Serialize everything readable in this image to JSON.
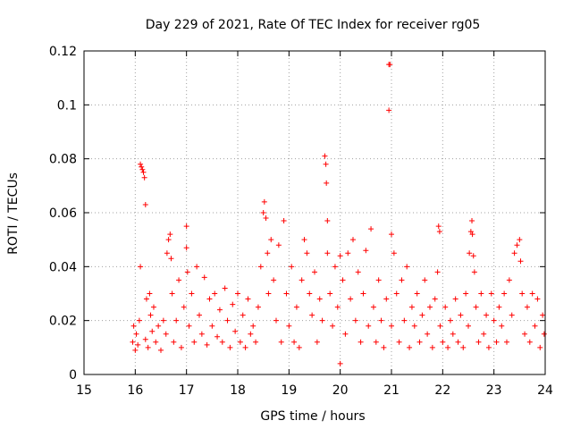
{
  "chart_data": {
    "type": "scatter",
    "title": "Day 229 of 2021, Rate Of TEC Index for receiver rg05",
    "xlabel": "GPS time / hours",
    "ylabel": "ROTI / TECUs",
    "xlim": [
      15,
      24
    ],
    "ylim": [
      0,
      0.12
    ],
    "x_ticks": [
      15,
      16,
      17,
      18,
      19,
      20,
      21,
      22,
      23,
      24
    ],
    "x_tick_labels": [
      "15",
      "16",
      "17",
      "18",
      "19",
      "20",
      "21",
      "22",
      "23",
      "24"
    ],
    "y_ticks": [
      0,
      0.02,
      0.04,
      0.06,
      0.08,
      0.1,
      0.12
    ],
    "y_tick_labels": [
      "0",
      "0.02",
      "0.04",
      "0.06",
      "0.08",
      "0.1",
      "0.12"
    ],
    "grid": true,
    "marker": "+",
    "series": [
      {
        "name": "ROTI",
        "color": "#ff0000",
        "points": [
          [
            15.95,
            0.012
          ],
          [
            15.97,
            0.018
          ],
          [
            16.0,
            0.009
          ],
          [
            16.02,
            0.015
          ],
          [
            16.05,
            0.011
          ],
          [
            16.08,
            0.02
          ],
          [
            16.1,
            0.04
          ],
          [
            16.1,
            0.078
          ],
          [
            16.12,
            0.077
          ],
          [
            16.14,
            0.076
          ],
          [
            16.16,
            0.075
          ],
          [
            16.18,
            0.073
          ],
          [
            16.2,
            0.063
          ],
          [
            16.2,
            0.013
          ],
          [
            16.22,
            0.028
          ],
          [
            16.25,
            0.01
          ],
          [
            16.28,
            0.03
          ],
          [
            16.3,
            0.022
          ],
          [
            16.33,
            0.016
          ],
          [
            16.36,
            0.025
          ],
          [
            16.4,
            0.012
          ],
          [
            16.45,
            0.018
          ],
          [
            16.5,
            0.009
          ],
          [
            16.55,
            0.02
          ],
          [
            16.6,
            0.015
          ],
          [
            16.62,
            0.045
          ],
          [
            16.65,
            0.05
          ],
          [
            16.68,
            0.052
          ],
          [
            16.7,
            0.043
          ],
          [
            16.72,
            0.03
          ],
          [
            16.75,
            0.012
          ],
          [
            16.8,
            0.02
          ],
          [
            16.85,
            0.035
          ],
          [
            16.9,
            0.01
          ],
          [
            16.95,
            0.025
          ],
          [
            17.0,
            0.055
          ],
          [
            17.0,
            0.047
          ],
          [
            17.02,
            0.038
          ],
          [
            17.05,
            0.018
          ],
          [
            17.1,
            0.03
          ],
          [
            17.15,
            0.012
          ],
          [
            17.2,
            0.04
          ],
          [
            17.25,
            0.022
          ],
          [
            17.3,
            0.015
          ],
          [
            17.35,
            0.036
          ],
          [
            17.4,
            0.011
          ],
          [
            17.45,
            0.028
          ],
          [
            17.5,
            0.018
          ],
          [
            17.55,
            0.03
          ],
          [
            17.6,
            0.014
          ],
          [
            17.65,
            0.024
          ],
          [
            17.7,
            0.012
          ],
          [
            17.75,
            0.032
          ],
          [
            17.8,
            0.02
          ],
          [
            17.85,
            0.01
          ],
          [
            17.9,
            0.026
          ],
          [
            17.95,
            0.016
          ],
          [
            18.0,
            0.03
          ],
          [
            18.05,
            0.012
          ],
          [
            18.1,
            0.022
          ],
          [
            18.15,
            0.01
          ],
          [
            18.2,
            0.028
          ],
          [
            18.25,
            0.015
          ],
          [
            18.3,
            0.018
          ],
          [
            18.35,
            0.012
          ],
          [
            18.4,
            0.025
          ],
          [
            18.45,
            0.04
          ],
          [
            18.5,
            0.06
          ],
          [
            18.52,
            0.064
          ],
          [
            18.55,
            0.058
          ],
          [
            18.58,
            0.045
          ],
          [
            18.6,
            0.03
          ],
          [
            18.65,
            0.05
          ],
          [
            18.7,
            0.035
          ],
          [
            18.75,
            0.02
          ],
          [
            18.8,
            0.048
          ],
          [
            18.85,
            0.012
          ],
          [
            18.9,
            0.057
          ],
          [
            18.95,
            0.03
          ],
          [
            19.0,
            0.018
          ],
          [
            19.05,
            0.04
          ],
          [
            19.1,
            0.012
          ],
          [
            19.15,
            0.025
          ],
          [
            19.2,
            0.01
          ],
          [
            19.25,
            0.035
          ],
          [
            19.3,
            0.05
          ],
          [
            19.35,
            0.045
          ],
          [
            19.4,
            0.03
          ],
          [
            19.45,
            0.022
          ],
          [
            19.5,
            0.038
          ],
          [
            19.55,
            0.012
          ],
          [
            19.6,
            0.028
          ],
          [
            19.65,
            0.02
          ],
          [
            19.7,
            0.081
          ],
          [
            19.72,
            0.078
          ],
          [
            19.73,
            0.071
          ],
          [
            19.75,
            0.057
          ],
          [
            19.75,
            0.045
          ],
          [
            19.8,
            0.03
          ],
          [
            19.85,
            0.018
          ],
          [
            19.9,
            0.04
          ],
          [
            19.95,
            0.025
          ],
          [
            20.0,
            0.044
          ],
          [
            20.0,
            0.004
          ],
          [
            20.05,
            0.035
          ],
          [
            20.1,
            0.015
          ],
          [
            20.15,
            0.045
          ],
          [
            20.2,
            0.028
          ],
          [
            20.25,
            0.05
          ],
          [
            20.3,
            0.02
          ],
          [
            20.35,
            0.038
          ],
          [
            20.4,
            0.012
          ],
          [
            20.45,
            0.03
          ],
          [
            20.5,
            0.046
          ],
          [
            20.55,
            0.018
          ],
          [
            20.6,
            0.054
          ],
          [
            20.65,
            0.025
          ],
          [
            20.7,
            0.012
          ],
          [
            20.75,
            0.035
          ],
          [
            20.8,
            0.02
          ],
          [
            20.85,
            0.01
          ],
          [
            20.9,
            0.028
          ],
          [
            20.95,
            0.115
          ],
          [
            20.97,
            0.115
          ],
          [
            20.95,
            0.098
          ],
          [
            21.0,
            0.052
          ],
          [
            21.0,
            0.018
          ],
          [
            21.05,
            0.045
          ],
          [
            21.1,
            0.03
          ],
          [
            21.15,
            0.012
          ],
          [
            21.2,
            0.035
          ],
          [
            21.25,
            0.02
          ],
          [
            21.3,
            0.04
          ],
          [
            21.35,
            0.01
          ],
          [
            21.4,
            0.025
          ],
          [
            21.45,
            0.018
          ],
          [
            21.5,
            0.03
          ],
          [
            21.55,
            0.012
          ],
          [
            21.6,
            0.022
          ],
          [
            21.65,
            0.035
          ],
          [
            21.7,
            0.015
          ],
          [
            21.75,
            0.025
          ],
          [
            21.8,
            0.01
          ],
          [
            21.85,
            0.028
          ],
          [
            21.9,
            0.038
          ],
          [
            21.92,
            0.055
          ],
          [
            21.94,
            0.053
          ],
          [
            21.95,
            0.018
          ],
          [
            22.0,
            0.012
          ],
          [
            22.05,
            0.025
          ],
          [
            22.1,
            0.01
          ],
          [
            22.15,
            0.02
          ],
          [
            22.2,
            0.015
          ],
          [
            22.25,
            0.028
          ],
          [
            22.3,
            0.012
          ],
          [
            22.35,
            0.022
          ],
          [
            22.4,
            0.01
          ],
          [
            22.45,
            0.03
          ],
          [
            22.5,
            0.018
          ],
          [
            22.52,
            0.045
          ],
          [
            22.55,
            0.053
          ],
          [
            22.57,
            0.057
          ],
          [
            22.58,
            0.052
          ],
          [
            22.6,
            0.044
          ],
          [
            22.62,
            0.038
          ],
          [
            22.65,
            0.025
          ],
          [
            22.7,
            0.012
          ],
          [
            22.75,
            0.03
          ],
          [
            22.8,
            0.015
          ],
          [
            22.85,
            0.022
          ],
          [
            22.9,
            0.01
          ],
          [
            22.95,
            0.03
          ],
          [
            23.0,
            0.02
          ],
          [
            23.05,
            0.012
          ],
          [
            23.1,
            0.025
          ],
          [
            23.15,
            0.018
          ],
          [
            23.2,
            0.03
          ],
          [
            23.25,
            0.012
          ],
          [
            23.3,
            0.035
          ],
          [
            23.35,
            0.022
          ],
          [
            23.4,
            0.045
          ],
          [
            23.45,
            0.048
          ],
          [
            23.5,
            0.05
          ],
          [
            23.52,
            0.042
          ],
          [
            23.55,
            0.03
          ],
          [
            23.6,
            0.015
          ],
          [
            23.65,
            0.025
          ],
          [
            23.7,
            0.012
          ],
          [
            23.75,
            0.03
          ],
          [
            23.8,
            0.018
          ],
          [
            23.85,
            0.028
          ],
          [
            23.9,
            0.01
          ],
          [
            23.95,
            0.022
          ],
          [
            23.98,
            0.015
          ]
        ]
      }
    ]
  }
}
